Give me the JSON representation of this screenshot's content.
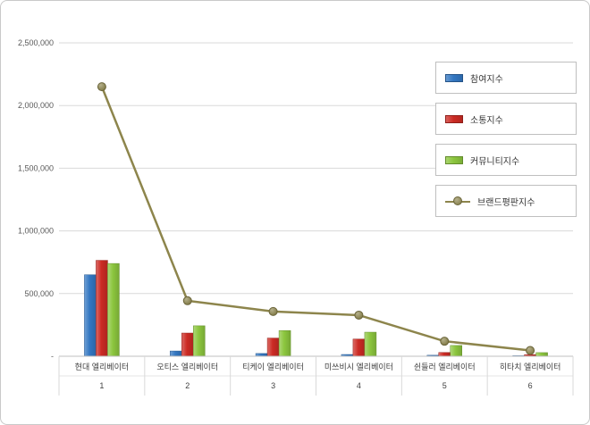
{
  "chart_data": {
    "type": "bar",
    "subtype": "grouped-bars-with-line-overlay",
    "title": "",
    "categories": [
      "현대 엘리베이터",
      "오티스 엘리베이터",
      "티케이 엘리베이터",
      "미쓰비시 엘리베이터",
      "쉰들러 엘리베이터",
      "히타치 엘리베이터"
    ],
    "category_ranks": [
      "1",
      "2",
      "3",
      "4",
      "5",
      "6"
    ],
    "series": [
      {
        "name": "참여지수",
        "type": "bar",
        "color": "#3377C2",
        "values": [
          650000,
          42000,
          22000,
          14000,
          8000,
          4000
        ]
      },
      {
        "name": "소통지수",
        "type": "bar",
        "color": "#CC2B24",
        "values": [
          765000,
          185000,
          145000,
          137000,
          30000,
          13000
        ]
      },
      {
        "name": "커뮤니티지수",
        "type": "bar",
        "color": "#8CC63E",
        "values": [
          740000,
          243000,
          205000,
          192000,
          86000,
          29000
        ]
      },
      {
        "name": "브랜드평판지수",
        "type": "line",
        "color": "#8D854C",
        "values": [
          2150000,
          443000,
          357000,
          328000,
          120000,
          46000
        ]
      }
    ],
    "xlabel": "",
    "ylabel": "",
    "ylim": [
      0,
      2500000
    ],
    "ytick_step": 500000,
    "ytick_labels": [
      "-",
      "500,000",
      "1,000,000",
      "1,500,000",
      "2,000,000",
      "2,500,000"
    ],
    "grid": true,
    "legend_position": "top-right"
  },
  "colors": {
    "grid": "#D9D9D9",
    "axis": "#BFBFBF",
    "tick_text": "#595959",
    "label_text": "#404040",
    "legend_border": "#BFBFBF",
    "frame_border": "#C9C9C9"
  }
}
